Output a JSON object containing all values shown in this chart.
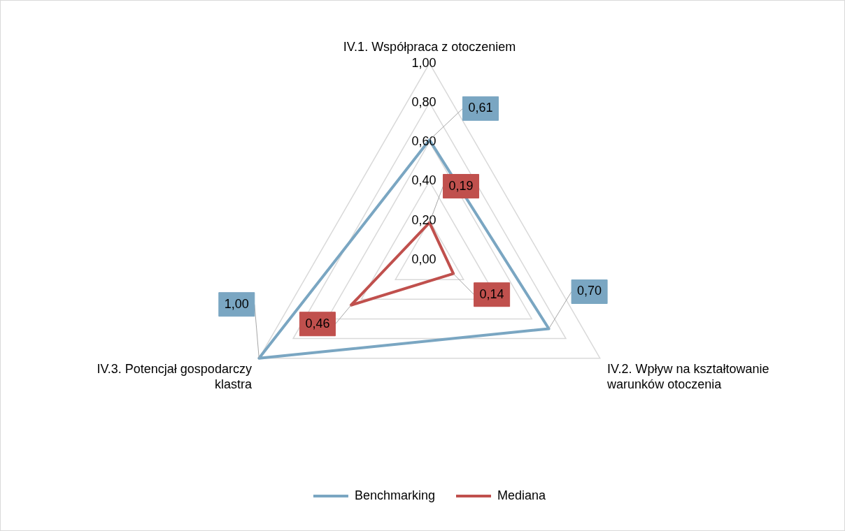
{
  "chart_data": {
    "type": "radar",
    "categories": [
      "IV.1. Współpraca z otoczeniem",
      "IV.2. Wpływ na kształtowanie warunków otoczenia",
      "IV.3. Potencjał gospodarczy klastra"
    ],
    "series": [
      {
        "name": "Benchmarking",
        "color": "#7aa6c2",
        "values": [
          0.61,
          0.7,
          1.0
        ],
        "value_labels": [
          "0,61",
          "0,70",
          "1,00"
        ]
      },
      {
        "name": "Mediana",
        "color": "#c0504d",
        "values": [
          0.19,
          0.14,
          0.46
        ],
        "value_labels": [
          "0,19",
          "0,14",
          "0,46"
        ]
      }
    ],
    "ylim": [
      0,
      1
    ],
    "yticks": [
      {
        "value": 0,
        "label": "0,00"
      },
      {
        "value": 0.2,
        "label": "0,20"
      },
      {
        "value": 0.4,
        "label": "0,40"
      },
      {
        "value": 0.6,
        "label": "0,60"
      },
      {
        "value": 0.8,
        "label": "0,80"
      },
      {
        "value": 1,
        "label": "1,00"
      }
    ],
    "grid": true,
    "legend": "bottom",
    "marker": "none",
    "line_style": "solid"
  }
}
